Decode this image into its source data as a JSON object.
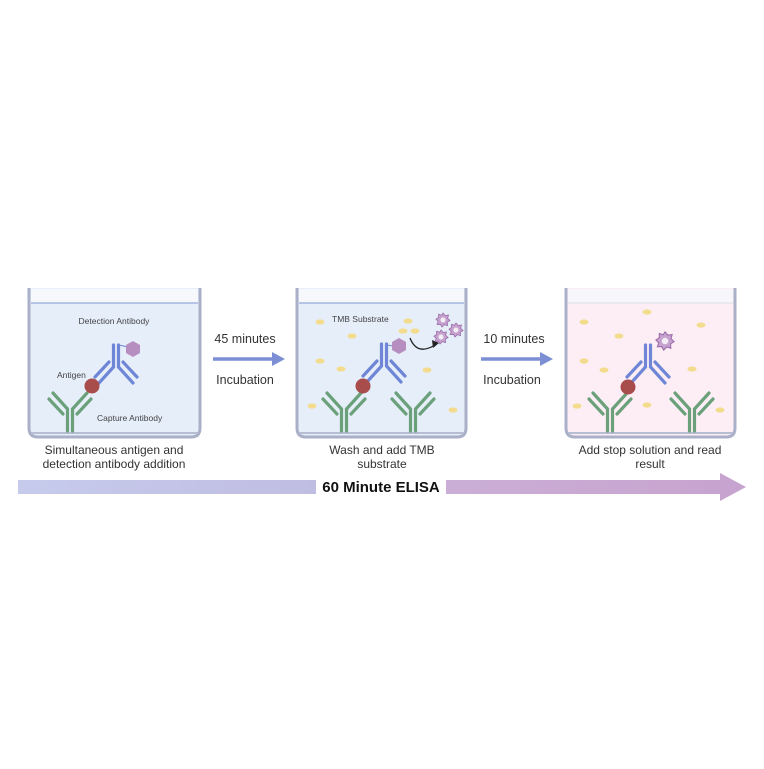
{
  "colors": {
    "well_fill_blue": "#e6eefa",
    "well_fill_pink": "#fdeef5",
    "well_border": "#a9b0c8",
    "capture_antibody": "#6aa07a",
    "detection_antibody": "#6f86d6",
    "antigen": "#a84c4c",
    "enzyme": "#b991c4",
    "substrate": "#f4dc8f",
    "arrow": "#7c8fd4",
    "bar_left": "#c3c8ea",
    "bar_right": "#c9a6cf"
  },
  "steps": [
    {
      "labels": {
        "detection": "Detection Antibody",
        "antigen": "Antigen",
        "capture": "Capture Antibody"
      },
      "caption_line1": "Simultaneous antigen and",
      "caption_line2": "detection antibody addition"
    },
    {
      "labels": {
        "substrate": "TMB Substrate"
      },
      "caption_line1": "Wash and add TMB",
      "caption_line2": "substrate"
    },
    {
      "caption_line1": "Add stop solution and read",
      "caption_line2": "result"
    }
  ],
  "transitions": [
    {
      "time": "45 minutes",
      "label": "Incubation"
    },
    {
      "time": "10 minutes",
      "label": "Incubation"
    }
  ],
  "timeline": {
    "title": "60 Minute ELISA"
  }
}
